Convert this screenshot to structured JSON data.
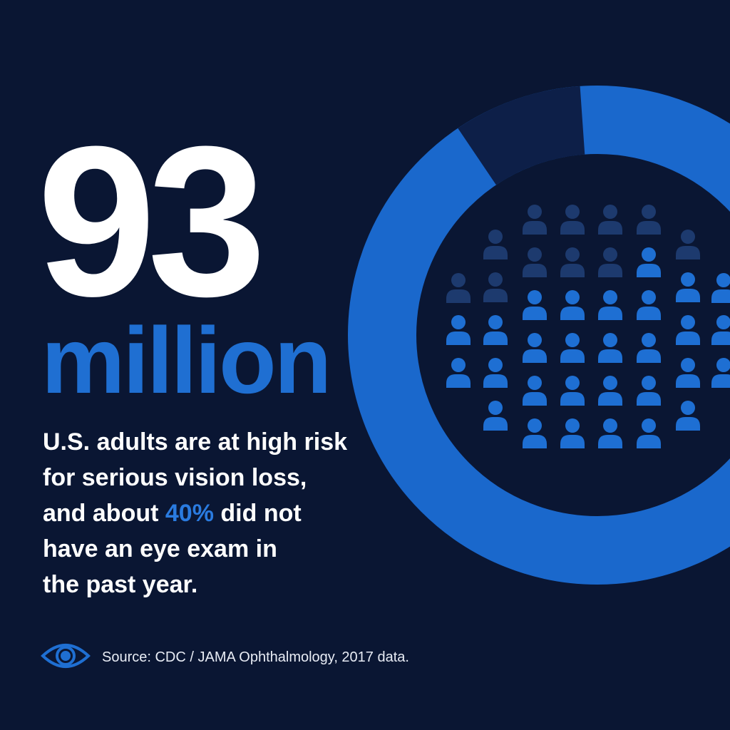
{
  "headline": {
    "number": "93",
    "unit": "million"
  },
  "body": {
    "lines_before": [
      "U.S. adults are at high risk",
      "for serious vision loss,"
    ],
    "highlight_line": {
      "before": "and about",
      "highlight": "40%",
      "after": "did not"
    },
    "lines_after": [
      "have an eye exam in",
      "the past year."
    ]
  },
  "source": "Source: CDC / JAMA Ophthalmology, 2017 data."
}
